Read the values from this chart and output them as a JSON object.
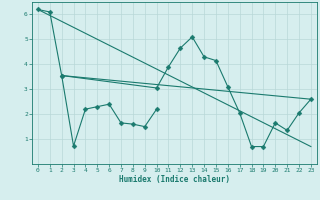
{
  "xlabel": "Humidex (Indice chaleur)",
  "bg_color": "#d6eeee",
  "line_color": "#1a7a6e",
  "grid_color": "#b8d8d8",
  "xlim": [
    -0.5,
    23.5
  ],
  "ylim": [
    0,
    6.5
  ],
  "yticks": [
    1,
    2,
    3,
    4,
    5,
    6
  ],
  "xticks": [
    0,
    1,
    2,
    3,
    4,
    5,
    6,
    7,
    8,
    9,
    10,
    11,
    12,
    13,
    14,
    15,
    16,
    17,
    18,
    19,
    20,
    21,
    22,
    23
  ],
  "line1_x": [
    0,
    1,
    2,
    10,
    11,
    12,
    13,
    14,
    15,
    16,
    17,
    18,
    19,
    20,
    21,
    22,
    23
  ],
  "line1_y": [
    6.2,
    6.1,
    3.55,
    3.05,
    3.9,
    4.65,
    5.1,
    4.3,
    4.15,
    3.1,
    2.05,
    0.7,
    0.7,
    1.65,
    1.35,
    2.05,
    2.6
  ],
  "line2_x": [
    2,
    3,
    4,
    5,
    6,
    7,
    8,
    9,
    10
  ],
  "line2_y": [
    3.55,
    0.72,
    2.2,
    2.3,
    2.4,
    1.65,
    1.6,
    1.5,
    2.2
  ],
  "line3_x": [
    0,
    23
  ],
  "line3_y": [
    6.2,
    0.7
  ],
  "line4_x": [
    2,
    23
  ],
  "line4_y": [
    3.55,
    2.6
  ],
  "marker_size": 2.5,
  "line_width": 0.8
}
